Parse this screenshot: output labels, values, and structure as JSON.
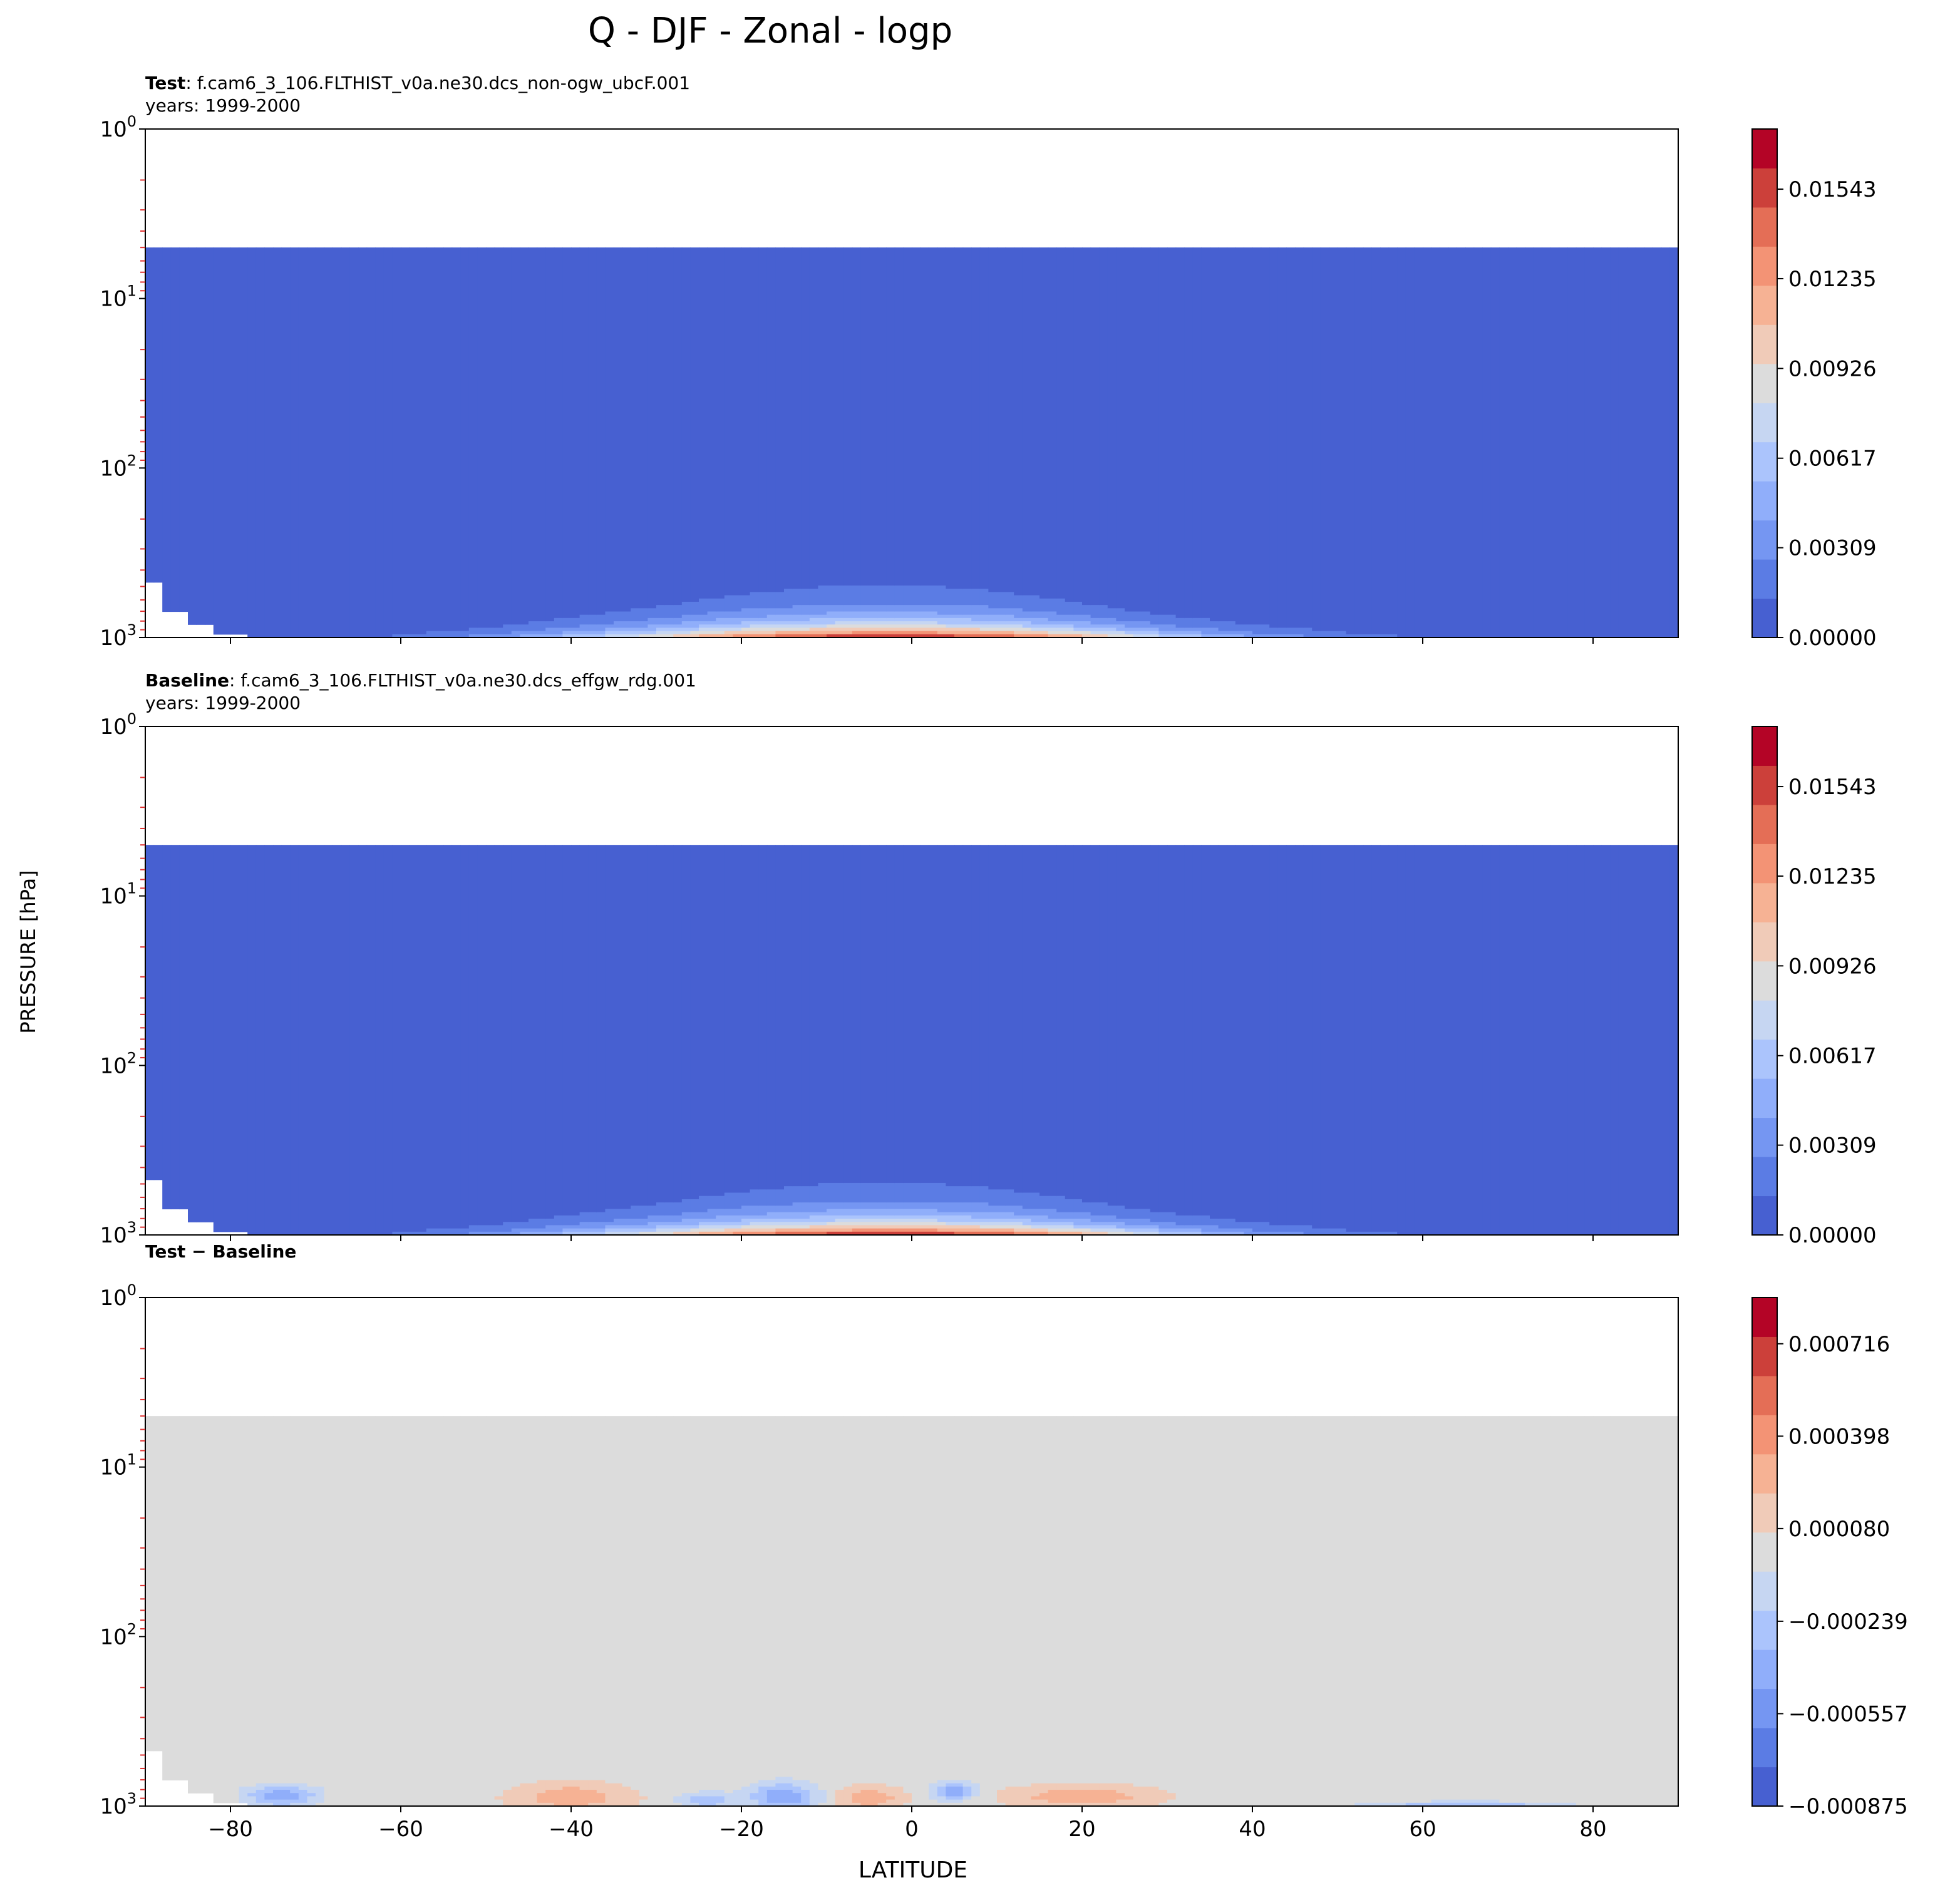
{
  "chart_data": {
    "type": "heatmap",
    "title": "Q - DJF - Zonal - logp",
    "xlabel": "LATITUDE",
    "ylabel": "PRESSURE [hPa]",
    "xlim": [
      -90,
      90
    ],
    "ylim": [
      1000,
      1
    ],
    "yscale": "log",
    "xticks": [
      -80,
      -60,
      -40,
      -20,
      0,
      20,
      40,
      60,
      80
    ],
    "xtick_labels": [
      "−80",
      "−60",
      "−40",
      "−20",
      "0",
      "20",
      "40",
      "60",
      "80"
    ],
    "ytick_labels": [
      {
        "base": "10",
        "exp": "0"
      },
      {
        "base": "10",
        "exp": "1"
      },
      {
        "base": "10",
        "exp": "2"
      },
      {
        "base": "10",
        "exp": "3"
      }
    ],
    "model_top_hPa": 5,
    "panels": [
      {
        "label_bold": "Test",
        "label_text": ": f.cam6_3_106.FLTHIST_v0a.ne30.dcs_non-ogw_ubcF.001",
        "years": "years: 1999-2000",
        "colorbar": {
          "min": 0.0,
          "max": 0.0175,
          "levels": 11,
          "ticks": [
            0.0,
            0.00309,
            0.00617,
            0.00926,
            0.01235,
            0.01543
          ],
          "tick_labels": [
            "0.00000",
            "0.00309",
            "0.00617",
            "0.00926",
            "0.01235",
            "0.01543"
          ],
          "colors": [
            "#4760d1",
            "#5b7ce4",
            "#7596f2",
            "#90aefa",
            "#abc4fc",
            "#c6d6f2",
            "#dcdcdc",
            "#f0cbb8",
            "#f6b294",
            "#f39375",
            "#e46e56",
            "#cc403a",
            "#b40426"
          ]
        },
        "field": {
          "kind": "humidity",
          "profile_lat": [
            -90,
            -80,
            -70,
            -60,
            -50,
            -40,
            -30,
            -20,
            -10,
            0,
            10,
            20,
            30,
            40,
            50,
            60,
            70,
            80,
            90
          ],
          "surface_q": [
            0.0,
            0.0004,
            0.0009,
            0.0017,
            0.0035,
            0.0065,
            0.01,
            0.014,
            0.0165,
            0.0172,
            0.016,
            0.0122,
            0.0075,
            0.0043,
            0.0025,
            0.0013,
            0.0006,
            0.0003,
            0.0002
          ],
          "scale_height": [
            60,
            70,
            90,
            110,
            130,
            150,
            170,
            190,
            200,
            200,
            190,
            170,
            150,
            140,
            120,
            100,
            80,
            70,
            60
          ]
        }
      },
      {
        "label_bold": "Baseline",
        "label_text": ": f.cam6_3_106.FLTHIST_v0a.ne30.dcs_effgw_rdg.001",
        "years": "years: 1999-2000",
        "colorbar": {
          "min": 0.0,
          "max": 0.0175,
          "levels": 11,
          "ticks": [
            0.0,
            0.00309,
            0.00617,
            0.00926,
            0.01235,
            0.01543
          ],
          "tick_labels": [
            "0.00000",
            "0.00309",
            "0.00617",
            "0.00926",
            "0.01235",
            "0.01543"
          ],
          "colors": [
            "#4760d1",
            "#5b7ce4",
            "#7596f2",
            "#90aefa",
            "#abc4fc",
            "#c6d6f2",
            "#dcdcdc",
            "#f0cbb8",
            "#f6b294",
            "#f39375",
            "#e46e56",
            "#cc403a",
            "#b40426"
          ]
        },
        "field": {
          "kind": "humidity",
          "profile_lat": [
            -90,
            -80,
            -70,
            -60,
            -50,
            -40,
            -30,
            -20,
            -10,
            0,
            10,
            20,
            30,
            40,
            50,
            60,
            70,
            80,
            90
          ],
          "surface_q": [
            0.0,
            0.0004,
            0.0009,
            0.0017,
            0.0035,
            0.0065,
            0.01,
            0.014,
            0.0165,
            0.0172,
            0.016,
            0.0122,
            0.0075,
            0.0043,
            0.0025,
            0.0013,
            0.0006,
            0.0003,
            0.0002
          ],
          "scale_height": [
            60,
            70,
            90,
            110,
            130,
            150,
            170,
            190,
            200,
            200,
            190,
            170,
            150,
            140,
            120,
            100,
            80,
            70,
            60
          ]
        }
      },
      {
        "label_bold": "Test − Baseline",
        "label_text": "",
        "years": "",
        "colorbar": {
          "min": -0.000875,
          "max": 0.000875,
          "levels": 11,
          "ticks": [
            -0.000875,
            -0.000557,
            -0.000239,
            8e-05,
            0.000398,
            0.000716
          ],
          "tick_labels": [
            "−0.000875",
            "−0.000557",
            "−0.000239",
            "0.000080",
            "0.000398",
            "0.000716"
          ],
          "colors": [
            "#4760d1",
            "#5b7ce4",
            "#7596f2",
            "#90aefa",
            "#abc4fc",
            "#c6d6f2",
            "#dcdcdc",
            "#f0cbb8",
            "#f6b294",
            "#f39375",
            "#e46e56",
            "#cc403a",
            "#b40426"
          ]
        },
        "field": {
          "kind": "difference",
          "blobs": [
            {
              "lat": -74,
              "p": 870,
              "dlat": 4,
              "dlogp": 0.06,
              "amp": -0.00045
            },
            {
              "lat": -40,
              "p": 880,
              "dlat": 7,
              "dlogp": 0.08,
              "amp": 0.0003
            },
            {
              "lat": -24,
              "p": 920,
              "dlat": 3,
              "dlogp": 0.04,
              "amp": -0.00035
            },
            {
              "lat": -15,
              "p": 880,
              "dlat": 4,
              "dlogp": 0.08,
              "amp": -0.00045
            },
            {
              "lat": -5,
              "p": 900,
              "dlat": 4,
              "dlogp": 0.07,
              "amp": 0.0003
            },
            {
              "lat": 5,
              "p": 820,
              "dlat": 2.5,
              "dlogp": 0.05,
              "amp": -0.00045
            },
            {
              "lat": 20,
              "p": 880,
              "dlat": 9,
              "dlogp": 0.07,
              "amp": 0.0003
            },
            {
              "lat": 65,
              "p": 990,
              "dlat": 10,
              "dlogp": 0.02,
              "amp": -0.00035
            }
          ]
        }
      }
    ]
  }
}
